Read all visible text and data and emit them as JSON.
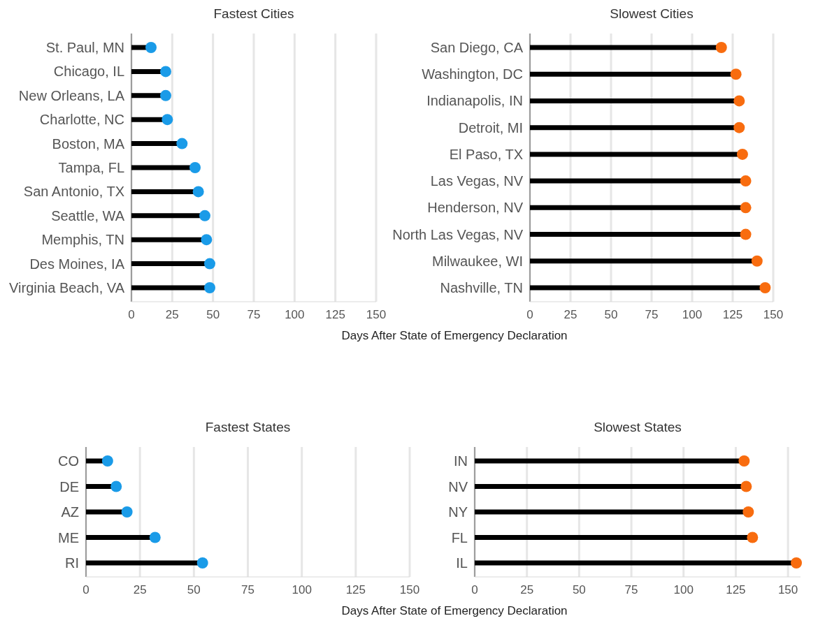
{
  "chart_data": [
    {
      "type": "lollipop",
      "orientation": "horizontal",
      "title": "Fastest Cities",
      "categories": [
        "St. Paul, MN",
        "Chicago, IL",
        "New Orleans, LA",
        "Charlotte, NC",
        "Boston, MA",
        "Tampa, FL",
        "San Antonio, TX",
        "Seattle, WA",
        "Memphis, TN",
        "Des Moines, IA",
        "Virginia Beach, VA"
      ],
      "values": [
        12,
        21,
        21,
        22,
        31,
        39,
        41,
        45,
        46,
        48,
        48
      ],
      "color": "#1a9be8",
      "xlim": [
        0,
        150
      ],
      "xticks": [
        0,
        25,
        50,
        75,
        100,
        125,
        150
      ],
      "grid": "x"
    },
    {
      "type": "lollipop",
      "orientation": "horizontal",
      "title": "Slowest Cities",
      "xlabel": "Days After State of Emergency Declaration",
      "categories": [
        "San Diego, CA",
        "Washington, DC",
        "Indianapolis, IN",
        "Detroit, MI",
        "El Paso, TX",
        "Las Vegas, NV",
        "Henderson, NV",
        "North Las Vegas, NV",
        "Milwaukee, WI",
        "Nashville, TN"
      ],
      "values": [
        118,
        127,
        129,
        129,
        131,
        133,
        133,
        133,
        140,
        145
      ],
      "color": "#f86c0f",
      "xlim": [
        0,
        150
      ],
      "xticks": [
        0,
        25,
        50,
        75,
        100,
        125,
        150
      ],
      "grid": "x"
    },
    {
      "type": "lollipop",
      "orientation": "horizontal",
      "title": "Fastest States",
      "categories": [
        "CO",
        "DE",
        "AZ",
        "ME",
        "RI"
      ],
      "values": [
        10,
        14,
        19,
        32,
        54
      ],
      "color": "#1a9be8",
      "xlim": [
        0,
        150
      ],
      "xticks": [
        0,
        25,
        50,
        75,
        100,
        125,
        150
      ],
      "grid": "x"
    },
    {
      "type": "lollipop",
      "orientation": "horizontal",
      "title": "Slowest States",
      "xlabel": "Days After State of Emergency Declaration",
      "categories": [
        "IN",
        "NV",
        "NY",
        "FL",
        "IL"
      ],
      "values": [
        129,
        130,
        131,
        133,
        154
      ],
      "color": "#f86c0f",
      "xlim": [
        0,
        156
      ],
      "xticks": [
        0,
        25,
        50,
        75,
        100,
        125,
        150
      ],
      "grid": "x"
    }
  ]
}
